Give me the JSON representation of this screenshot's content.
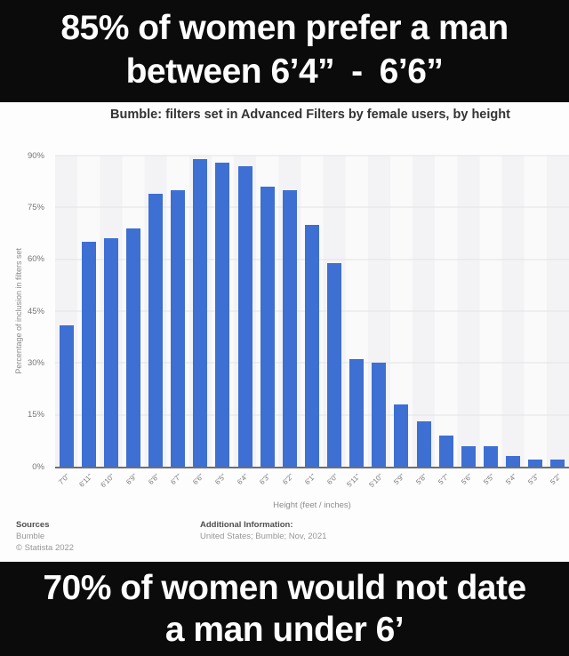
{
  "meme": {
    "top_line1": "85% of women prefer a man",
    "top_line2": "between 6’4” - 6’6”",
    "bottom_line1": "70% of women would not date",
    "bottom_line2": "a man under 6’"
  },
  "chart": {
    "title": "Bumble: filters set in Advanced Filters by female users, by height",
    "y_axis_title": "Percentage of inclusion in filters set",
    "x_axis_title": "Height (feet / inches)",
    "footer": {
      "sources_label": "Sources",
      "source_name": "Bumble",
      "copyright": "© Statista 2022",
      "additional_info_label": "Additional Information:",
      "additional_info": "United States; Bumble; Nov, 2021"
    }
  },
  "chart_data": {
    "type": "bar",
    "title": "Bumble: filters set in Advanced Filters by female users, by height",
    "xlabel": "Height (feet / inches)",
    "ylabel": "Percentage of inclusion in filters set",
    "categories": [
      "7'0\"",
      "6'11\"",
      "6'10\"",
      "6'9\"",
      "6'8\"",
      "6'7\"",
      "6'6\"",
      "6'5\"",
      "6'4\"",
      "6'3\"",
      "6'2\"",
      "6'1\"",
      "6'0\"",
      "5'11\"",
      "5'10\"",
      "5'9\"",
      "5'8\"",
      "5'7\"",
      "5'6\"",
      "5'5\"",
      "5'4\"",
      "5'3\"",
      "5'2\""
    ],
    "values": [
      41,
      65,
      66,
      69,
      79,
      80,
      89,
      88,
      87,
      81,
      80,
      70,
      59,
      31,
      30,
      18,
      13,
      9,
      6,
      6,
      3,
      2,
      2
    ],
    "ylim": [
      0,
      90
    ],
    "ytick_step": 15,
    "yticks": [
      "0%",
      "15%",
      "30%",
      "45%",
      "60%",
      "75%",
      "90%"
    ],
    "grid": true,
    "legend": false,
    "bar_color": "#3e6fd2"
  }
}
